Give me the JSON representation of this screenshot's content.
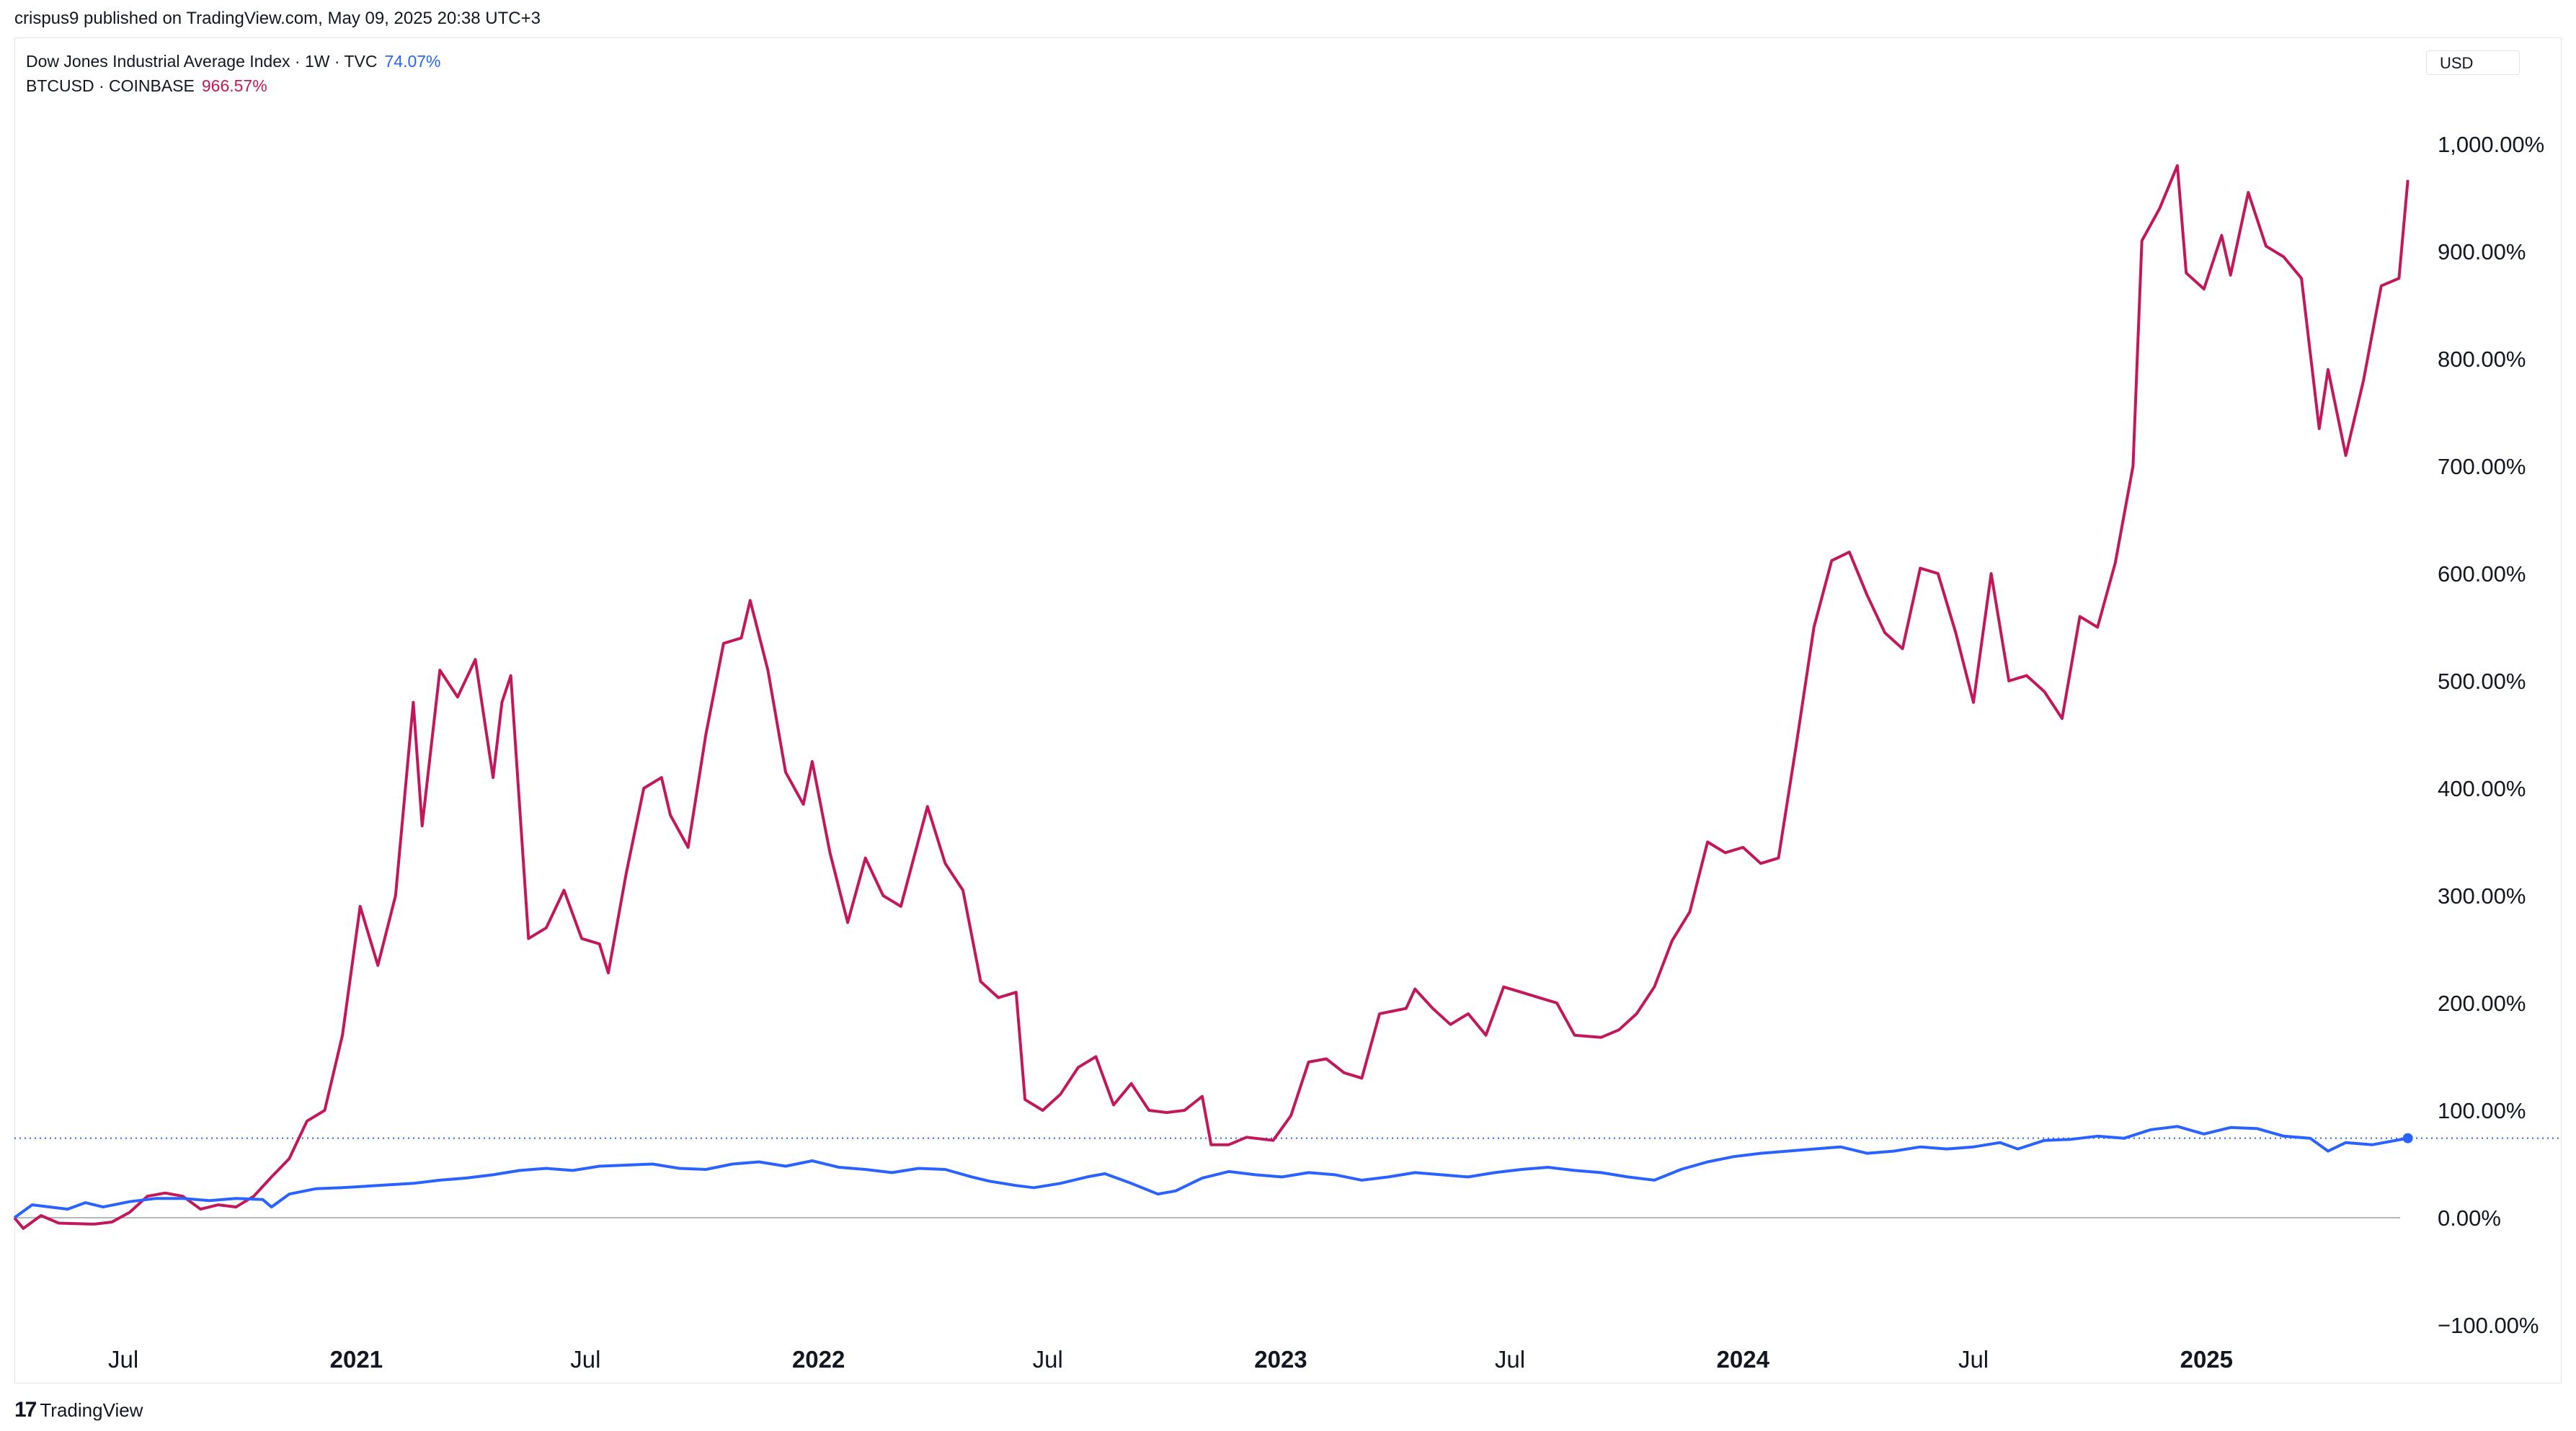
{
  "header": {
    "published": "crispus9 published on TradingView.com, May 09, 2025 20:38 UTC+3"
  },
  "legend": [
    {
      "label": "Dow Jones Industrial Average Index · 1W · TVC",
      "value": "74.07%",
      "color": "#2962ff"
    },
    {
      "label": "BTCUSD · COINBASE",
      "value": "966.57%",
      "color": "#c2185b"
    }
  ],
  "currency_label": "USD",
  "footer": {
    "brand_mark": "17",
    "brand": "TradingView"
  },
  "chart_data": {
    "type": "line",
    "x_unit": "date",
    "x_range": [
      "2020-04-06",
      "2025-06-20"
    ],
    "y_unit": "percent change",
    "ylim": [
      -100,
      1100
    ],
    "y_ticks": [
      {
        "value": 1000,
        "label": "1,000.00%"
      },
      {
        "value": 900,
        "label": "900.00%"
      },
      {
        "value": 800,
        "label": "800.00%"
      },
      {
        "value": 700,
        "label": "700.00%"
      },
      {
        "value": 600,
        "label": "600.00%"
      },
      {
        "value": 500,
        "label": "500.00%"
      },
      {
        "value": 400,
        "label": "400.00%"
      },
      {
        "value": 300,
        "label": "300.00%"
      },
      {
        "value": 200,
        "label": "200.00%"
      },
      {
        "value": 100,
        "label": "100.00%"
      },
      {
        "value": 0,
        "label": "0.00%"
      },
      {
        "value": -100,
        "label": "−100.00%"
      }
    ],
    "x_ticks": [
      {
        "date": "2020-07-01",
        "label": "Jul",
        "bold": false
      },
      {
        "date": "2021-01-01",
        "label": "2021",
        "bold": true
      },
      {
        "date": "2021-07-01",
        "label": "Jul",
        "bold": false
      },
      {
        "date": "2022-01-01",
        "label": "2022",
        "bold": true
      },
      {
        "date": "2022-07-01",
        "label": "Jul",
        "bold": false
      },
      {
        "date": "2023-01-01",
        "label": "2023",
        "bold": true
      },
      {
        "date": "2023-07-01",
        "label": "Jul",
        "bold": false
      },
      {
        "date": "2024-01-01",
        "label": "2024",
        "bold": true
      },
      {
        "date": "2024-07-01",
        "label": "Jul",
        "bold": false
      },
      {
        "date": "2025-01-01",
        "label": "2025",
        "bold": true
      }
    ],
    "reference_line": {
      "value": 74.07,
      "color": "#2962ff",
      "style": "dotted"
    },
    "series": [
      {
        "name": "BTCUSD · COINBASE",
        "color": "#c2185b",
        "points": [
          [
            "2020-04-06",
            0
          ],
          [
            "2020-04-13",
            -10
          ],
          [
            "2020-04-27",
            2
          ],
          [
            "2020-05-11",
            -5
          ],
          [
            "2020-06-08",
            -6
          ],
          [
            "2020-06-22",
            -4
          ],
          [
            "2020-07-06",
            5
          ],
          [
            "2020-07-20",
            20
          ],
          [
            "2020-08-03",
            23
          ],
          [
            "2020-08-17",
            20
          ],
          [
            "2020-08-31",
            8
          ],
          [
            "2020-09-14",
            12
          ],
          [
            "2020-09-28",
            10
          ],
          [
            "2020-10-12",
            20
          ],
          [
            "2020-10-26",
            38
          ],
          [
            "2020-11-09",
            55
          ],
          [
            "2020-11-23",
            90
          ],
          [
            "2020-12-07",
            100
          ],
          [
            "2020-12-21",
            170
          ],
          [
            "2021-01-04",
            290
          ],
          [
            "2021-01-18",
            235
          ],
          [
            "2021-02-01",
            300
          ],
          [
            "2021-02-15",
            480
          ],
          [
            "2021-02-22",
            365
          ],
          [
            "2021-03-08",
            510
          ],
          [
            "2021-03-22",
            485
          ],
          [
            "2021-04-05",
            520
          ],
          [
            "2021-04-19",
            410
          ],
          [
            "2021-04-26",
            480
          ],
          [
            "2021-05-03",
            505
          ],
          [
            "2021-05-17",
            260
          ],
          [
            "2021-05-31",
            270
          ],
          [
            "2021-06-14",
            305
          ],
          [
            "2021-06-28",
            260
          ],
          [
            "2021-07-12",
            255
          ],
          [
            "2021-07-19",
            228
          ],
          [
            "2021-08-02",
            320
          ],
          [
            "2021-08-16",
            400
          ],
          [
            "2021-08-30",
            410
          ],
          [
            "2021-09-06",
            375
          ],
          [
            "2021-09-20",
            345
          ],
          [
            "2021-10-04",
            450
          ],
          [
            "2021-10-18",
            535
          ],
          [
            "2021-11-01",
            540
          ],
          [
            "2021-11-08",
            575
          ],
          [
            "2021-11-22",
            510
          ],
          [
            "2021-12-06",
            415
          ],
          [
            "2021-12-20",
            385
          ],
          [
            "2021-12-27",
            425
          ],
          [
            "2022-01-10",
            340
          ],
          [
            "2022-01-24",
            275
          ],
          [
            "2022-02-07",
            335
          ],
          [
            "2022-02-21",
            300
          ],
          [
            "2022-03-07",
            290
          ],
          [
            "2022-03-28",
            383
          ],
          [
            "2022-04-11",
            330
          ],
          [
            "2022-04-25",
            305
          ],
          [
            "2022-05-09",
            220
          ],
          [
            "2022-05-23",
            205
          ],
          [
            "2022-06-06",
            210
          ],
          [
            "2022-06-13",
            110
          ],
          [
            "2022-06-27",
            100
          ],
          [
            "2022-07-11",
            115
          ],
          [
            "2022-07-25",
            140
          ],
          [
            "2022-08-08",
            150
          ],
          [
            "2022-08-22",
            105
          ],
          [
            "2022-09-05",
            125
          ],
          [
            "2022-09-19",
            100
          ],
          [
            "2022-10-03",
            98
          ],
          [
            "2022-10-17",
            100
          ],
          [
            "2022-10-31",
            113
          ],
          [
            "2022-11-07",
            68
          ],
          [
            "2022-11-21",
            68
          ],
          [
            "2022-12-05",
            75
          ],
          [
            "2022-12-26",
            72
          ],
          [
            "2023-01-09",
            95
          ],
          [
            "2023-01-23",
            145
          ],
          [
            "2023-02-06",
            148
          ],
          [
            "2023-02-20",
            135
          ],
          [
            "2023-03-06",
            130
          ],
          [
            "2023-03-20",
            190
          ],
          [
            "2023-04-10",
            195
          ],
          [
            "2023-04-17",
            213
          ],
          [
            "2023-05-01",
            195
          ],
          [
            "2023-05-15",
            180
          ],
          [
            "2023-05-29",
            190
          ],
          [
            "2023-06-12",
            170
          ],
          [
            "2023-06-26",
            215
          ],
          [
            "2023-07-10",
            210
          ],
          [
            "2023-07-24",
            205
          ],
          [
            "2023-08-07",
            200
          ],
          [
            "2023-08-21",
            170
          ],
          [
            "2023-09-11",
            168
          ],
          [
            "2023-09-25",
            175
          ],
          [
            "2023-10-09",
            190
          ],
          [
            "2023-10-23",
            215
          ],
          [
            "2023-11-06",
            258
          ],
          [
            "2023-11-20",
            285
          ],
          [
            "2023-12-04",
            350
          ],
          [
            "2023-12-18",
            340
          ],
          [
            "2024-01-01",
            345
          ],
          [
            "2024-01-15",
            330
          ],
          [
            "2024-01-29",
            335
          ],
          [
            "2024-02-12",
            440
          ],
          [
            "2024-02-26",
            550
          ],
          [
            "2024-03-11",
            612
          ],
          [
            "2024-03-25",
            620
          ],
          [
            "2024-04-08",
            580
          ],
          [
            "2024-04-22",
            545
          ],
          [
            "2024-05-06",
            530
          ],
          [
            "2024-05-20",
            605
          ],
          [
            "2024-06-03",
            600
          ],
          [
            "2024-06-17",
            545
          ],
          [
            "2024-07-01",
            480
          ],
          [
            "2024-07-15",
            600
          ],
          [
            "2024-07-29",
            500
          ],
          [
            "2024-08-12",
            505
          ],
          [
            "2024-08-26",
            490
          ],
          [
            "2024-09-09",
            465
          ],
          [
            "2024-09-23",
            560
          ],
          [
            "2024-10-07",
            550
          ],
          [
            "2024-10-21",
            610
          ],
          [
            "2024-11-04",
            700
          ],
          [
            "2024-11-11",
            910
          ],
          [
            "2024-11-25",
            940
          ],
          [
            "2024-12-09",
            980
          ],
          [
            "2024-12-16",
            880
          ],
          [
            "2024-12-30",
            865
          ],
          [
            "2025-01-13",
            915
          ],
          [
            "2025-01-20",
            878
          ],
          [
            "2025-02-03",
            955
          ],
          [
            "2025-02-17",
            905
          ],
          [
            "2025-03-03",
            895
          ],
          [
            "2025-03-17",
            875
          ],
          [
            "2025-03-31",
            735
          ],
          [
            "2025-04-07",
            790
          ],
          [
            "2025-04-21",
            710
          ],
          [
            "2025-05-05",
            780
          ],
          [
            "2025-05-19",
            868
          ],
          [
            "2025-06-02",
            875
          ],
          [
            "2025-06-09",
            966.57
          ]
        ]
      },
      {
        "name": "Dow Jones Industrial Average Index · 1W · TVC",
        "color": "#2962ff",
        "points": [
          [
            "2020-04-06",
            0
          ],
          [
            "2020-04-20",
            12
          ],
          [
            "2020-05-04",
            10
          ],
          [
            "2020-05-18",
            8
          ],
          [
            "2020-06-01",
            14
          ],
          [
            "2020-06-15",
            10
          ],
          [
            "2020-07-06",
            15
          ],
          [
            "2020-07-27",
            18
          ],
          [
            "2020-08-17",
            18
          ],
          [
            "2020-09-07",
            16
          ],
          [
            "2020-09-28",
            18
          ],
          [
            "2020-10-19",
            17
          ],
          [
            "2020-10-26",
            10
          ],
          [
            "2020-11-09",
            22
          ],
          [
            "2020-11-30",
            27
          ],
          [
            "2020-12-21",
            28
          ],
          [
            "2021-01-18",
            30
          ],
          [
            "2021-02-15",
            32
          ],
          [
            "2021-03-08",
            35
          ],
          [
            "2021-03-29",
            37
          ],
          [
            "2021-04-19",
            40
          ],
          [
            "2021-05-10",
            44
          ],
          [
            "2021-05-31",
            46
          ],
          [
            "2021-06-21",
            44
          ],
          [
            "2021-07-12",
            48
          ],
          [
            "2021-08-02",
            49
          ],
          [
            "2021-08-23",
            50
          ],
          [
            "2021-09-13",
            46
          ],
          [
            "2021-10-04",
            45
          ],
          [
            "2021-10-25",
            50
          ],
          [
            "2021-11-15",
            52
          ],
          [
            "2021-12-06",
            48
          ],
          [
            "2021-12-27",
            53
          ],
          [
            "2022-01-17",
            47
          ],
          [
            "2022-02-07",
            45
          ],
          [
            "2022-02-28",
            42
          ],
          [
            "2022-03-21",
            46
          ],
          [
            "2022-04-11",
            45
          ],
          [
            "2022-05-02",
            38
          ],
          [
            "2022-05-16",
            34
          ],
          [
            "2022-06-06",
            30
          ],
          [
            "2022-06-20",
            28
          ],
          [
            "2022-07-11",
            32
          ],
          [
            "2022-08-01",
            38
          ],
          [
            "2022-08-15",
            41
          ],
          [
            "2022-09-05",
            32
          ],
          [
            "2022-09-26",
            22
          ],
          [
            "2022-10-10",
            25
          ],
          [
            "2022-10-31",
            37
          ],
          [
            "2022-11-21",
            43
          ],
          [
            "2022-12-12",
            40
          ],
          [
            "2023-01-02",
            38
          ],
          [
            "2023-01-23",
            42
          ],
          [
            "2023-02-13",
            40
          ],
          [
            "2023-03-06",
            35
          ],
          [
            "2023-03-27",
            38
          ],
          [
            "2023-04-17",
            42
          ],
          [
            "2023-05-08",
            40
          ],
          [
            "2023-05-29",
            38
          ],
          [
            "2023-06-19",
            42
          ],
          [
            "2023-07-10",
            45
          ],
          [
            "2023-07-31",
            47
          ],
          [
            "2023-08-21",
            44
          ],
          [
            "2023-09-11",
            42
          ],
          [
            "2023-10-02",
            38
          ],
          [
            "2023-10-23",
            35
          ],
          [
            "2023-11-13",
            45
          ],
          [
            "2023-12-04",
            52
          ],
          [
            "2023-12-25",
            57
          ],
          [
            "2024-01-15",
            60
          ],
          [
            "2024-02-05",
            62
          ],
          [
            "2024-02-26",
            64
          ],
          [
            "2024-03-18",
            66
          ],
          [
            "2024-04-08",
            60
          ],
          [
            "2024-04-29",
            62
          ],
          [
            "2024-05-20",
            66
          ],
          [
            "2024-06-10",
            64
          ],
          [
            "2024-07-01",
            66
          ],
          [
            "2024-07-22",
            70
          ],
          [
            "2024-08-05",
            64
          ],
          [
            "2024-08-26",
            72
          ],
          [
            "2024-09-16",
            73
          ],
          [
            "2024-10-07",
            76
          ],
          [
            "2024-10-28",
            74
          ],
          [
            "2024-11-18",
            82
          ],
          [
            "2024-12-09",
            85
          ],
          [
            "2024-12-30",
            78
          ],
          [
            "2025-01-20",
            84
          ],
          [
            "2025-02-10",
            83
          ],
          [
            "2025-03-03",
            76
          ],
          [
            "2025-03-24",
            74
          ],
          [
            "2025-04-07",
            62
          ],
          [
            "2025-04-21",
            70
          ],
          [
            "2025-05-12",
            68
          ],
          [
            "2025-06-09",
            74.07
          ]
        ]
      }
    ]
  }
}
